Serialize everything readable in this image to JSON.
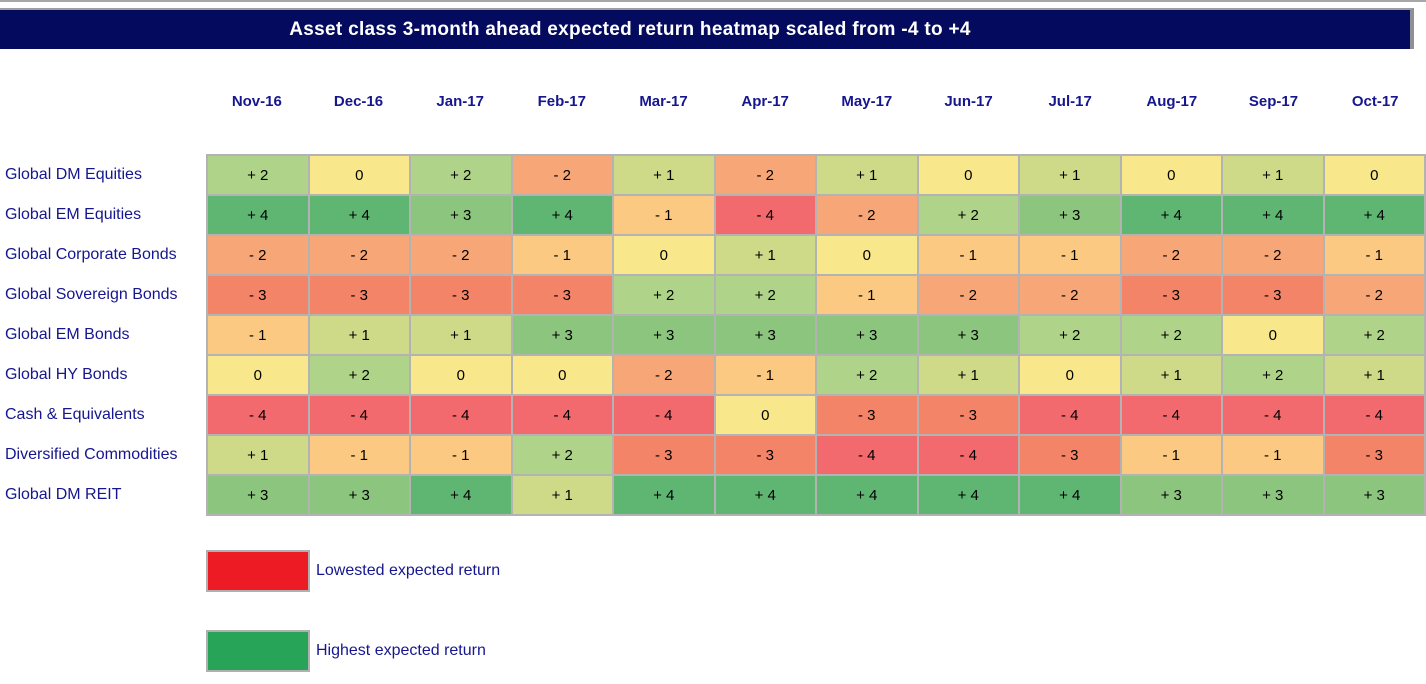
{
  "title_bar": {
    "title": "Asset class 3-month ahead expected return heatmap scaled from -4 to +4"
  },
  "chart_data": {
    "type": "heatmap",
    "title": "Asset class 3-month ahead expected return heatmap scaled from -4 to +4",
    "scale": [
      -4,
      4
    ],
    "columns": [
      "Nov-16",
      "Dec-16",
      "Jan-17",
      "Feb-17",
      "Mar-17",
      "Apr-17",
      "May-17",
      "Jun-17",
      "Jul-17",
      "Aug-17",
      "Sep-17",
      "Oct-17"
    ],
    "rows": [
      "Global DM Equities",
      "Global EM Equities",
      "Global Corporate Bonds",
      "Global Sovereign Bonds",
      "Global EM Bonds",
      "Global HY Bonds",
      "Cash & Equivalents",
      "Diversified Commodities",
      "Global DM REIT"
    ],
    "series": [
      {
        "name": "Global DM Equities",
        "values": [
          2,
          0,
          2,
          -2,
          1,
          -2,
          1,
          0,
          1,
          0,
          1,
          0
        ]
      },
      {
        "name": "Global EM Equities",
        "values": [
          4,
          4,
          3,
          4,
          -1,
          -4,
          -2,
          2,
          3,
          4,
          4,
          4
        ]
      },
      {
        "name": "Global Corporate Bonds",
        "values": [
          -2,
          -2,
          -2,
          -1,
          0,
          1,
          0,
          -1,
          -1,
          -2,
          -2,
          -1
        ]
      },
      {
        "name": "Global Sovereign Bonds",
        "values": [
          -3,
          -3,
          -3,
          -3,
          2,
          2,
          -1,
          -2,
          -2,
          -3,
          -3,
          -2
        ]
      },
      {
        "name": "Global EM Bonds",
        "values": [
          -1,
          1,
          1,
          3,
          3,
          3,
          3,
          3,
          2,
          2,
          0,
          2
        ]
      },
      {
        "name": "Global HY Bonds",
        "values": [
          0,
          2,
          0,
          0,
          -2,
          -1,
          2,
          1,
          0,
          1,
          2,
          1
        ]
      },
      {
        "name": "Cash & Equivalents",
        "values": [
          -4,
          -4,
          -4,
          -4,
          -4,
          0,
          -3,
          -3,
          -4,
          -4,
          -4,
          -4
        ]
      },
      {
        "name": "Diversified Commodities",
        "values": [
          1,
          -1,
          -1,
          2,
          -3,
          -3,
          -4,
          -4,
          -3,
          -1,
          -1,
          -3
        ]
      },
      {
        "name": "Global DM REIT",
        "values": [
          3,
          3,
          4,
          1,
          4,
          4,
          4,
          4,
          4,
          3,
          3,
          3
        ]
      }
    ],
    "value_colors": {
      "-4": "#f2696e",
      "-3": "#f48468",
      "-2": "#f7a678",
      "-1": "#fbc981",
      "0": "#f9e78b",
      "1": "#cfda89",
      "2": "#afd489",
      "3": "#8cc57d",
      "4": "#5fb673"
    },
    "legend_position": "bottom-left",
    "grid": true
  },
  "legend": [
    {
      "label": "Lowested expected return",
      "color": "#ed1c24"
    },
    {
      "label": "Highest expected return",
      "color": "#27a457"
    }
  ],
  "colors": {
    "title_bar_bg": "#040a5e",
    "heading_text": "#16168f",
    "grid_border": "#b3b3b3",
    "title_text": "#ffffff"
  }
}
